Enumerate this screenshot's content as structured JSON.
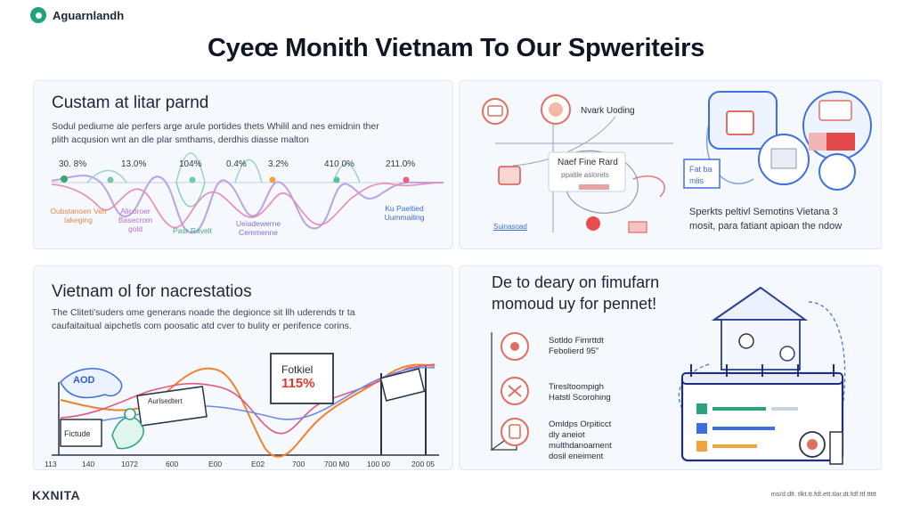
{
  "brand": {
    "name": "Aguarnlandh"
  },
  "title": "Cyeœ Monith Vietnam To Our Spweriteirs",
  "panel1": {
    "title": "Custam at litar parnd",
    "text_line1": "Sodul pediume ale perfers arge arule portides thets Whilil and nes emidnin ther",
    "text_line2": "plith acqusion wnt an dle plar smthams, derdhis diasse malton",
    "percents": [
      "30. 8%",
      "13.0%",
      "104%",
      "0.4%",
      "3.2%",
      "410 0%",
      "211.0%"
    ],
    "labels": {
      "a": "Oubstanoen Veh lakeging",
      "b": "Alicoroer Basecrom gold",
      "c": "Pasr Ravelt",
      "d": "Ueiadewerne Cemmenne",
      "e": "Ku Paeltied Uummailing"
    }
  },
  "panel2": {
    "node1": "Nvark Uoding",
    "card_title": "Naef Fine Rard",
    "card_sub": "ppatile aslorets",
    "tag1": "Fat ba",
    "tag2": "mlis",
    "footer_label": "Suinasoad",
    "caption_line1": "Sperkts peltivl Semotins Vietana 3",
    "caption_line2": "mosit, para fatiant apioan the ndow"
  },
  "panel3": {
    "title": "Vietnam ol for nacrestatios",
    "text_line1": "The  Cliteti'suders ome generans noade the degionce sit llh uderends tr ta",
    "text_line2": "caufaitaitual aipchetls com poosatic atd cver to bulity er perifence corins.",
    "bubble": "AOD",
    "box_fotkiel": "Fotkiel",
    "box_value": "115%",
    "card_small": "Aurlsedtert",
    "box_fictude": "Fictude",
    "ticks": [
      "113",
      "140",
      "1072",
      "600",
      "E00",
      "E02",
      "700",
      "700 M0",
      "100 00",
      "200 05"
    ]
  },
  "panel4": {
    "title_line1": "De to deary on fimufarn",
    "title_line2": "momoud uy for pennet!",
    "items": [
      {
        "line1": "Sotldo Fimrttdt",
        "line2": "Febolierd 95\""
      },
      {
        "line1": "Tiresltoompigh",
        "line2": "Hatstl Scorohing"
      },
      {
        "line1": "Omldps Orpiticct",
        "line2": "dly aneiot",
        "line3": "multhdanoament",
        "line4": "dosil eneiment"
      }
    ]
  },
  "footer": {
    "logo": "KXNITA",
    "note": "ms/d.dlt. tlkt.tt.fdl.ett.tlar.dt.fdf.ttf.ttttt"
  }
}
